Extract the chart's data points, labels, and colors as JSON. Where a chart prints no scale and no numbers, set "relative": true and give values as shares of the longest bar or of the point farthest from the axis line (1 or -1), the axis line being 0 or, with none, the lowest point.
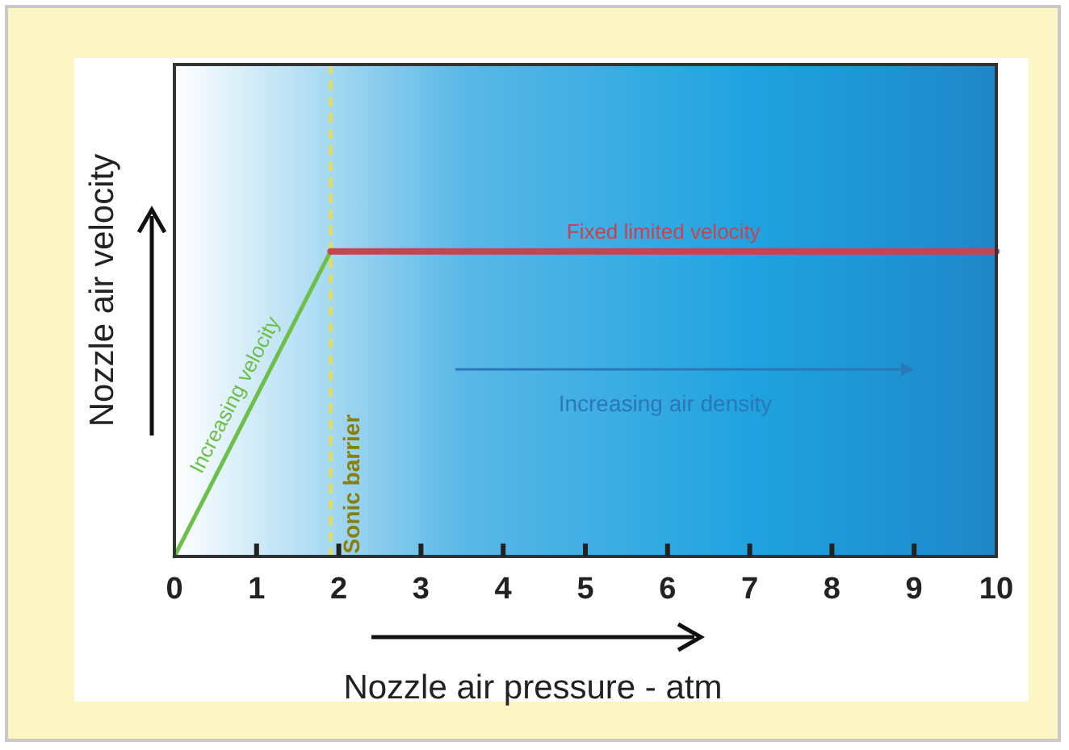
{
  "chart_data": {
    "type": "line",
    "relative": true,
    "xlabel": "Nozzle air pressure - atm",
    "ylabel": "Nozzle air velocity",
    "xlim": [
      0,
      10
    ],
    "xticks": [
      0,
      1,
      2,
      3,
      4,
      5,
      6,
      7,
      8,
      9,
      10
    ],
    "series": [
      {
        "name": "Increasing velocity",
        "color": "#6cc04a",
        "x": [
          0,
          1.9
        ],
        "values": [
          0,
          1
        ]
      },
      {
        "name": "Fixed limited velocity",
        "color": "#c8434f",
        "x": [
          1.9,
          10
        ],
        "values": [
          1,
          1
        ]
      }
    ],
    "ref_lines": [
      {
        "axis": "x",
        "value": 1.9,
        "label": "Sonic barrier",
        "color": "#e6e04a",
        "line_style": "dashed"
      }
    ],
    "annotations": [
      "Increasing air density"
    ]
  }
}
